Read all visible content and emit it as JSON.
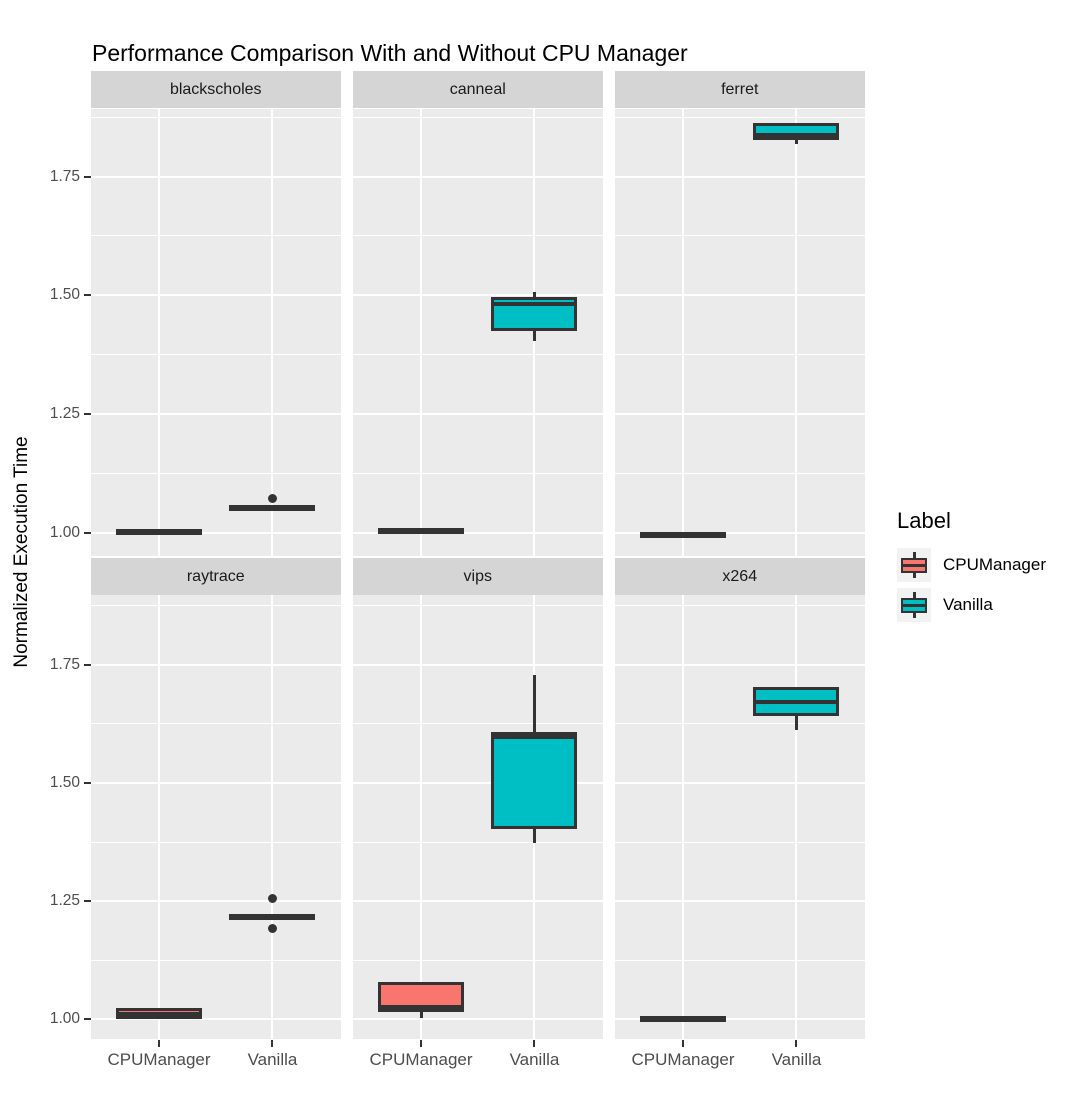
{
  "chart_data": {
    "type": "boxplot",
    "title": "Performance Comparison With and Without CPU Manager",
    "xlabel": "",
    "ylabel": "Normalized Execution Time",
    "x_categories": [
      "CPUManager",
      "Vanilla"
    ],
    "y_ticks": [
      1.0,
      1.25,
      1.5,
      1.75
    ],
    "y_tick_labels": [
      "1.00",
      "1.25",
      "1.50",
      "1.75"
    ],
    "y_minor_ticks": [
      1.125,
      1.375,
      1.625,
      1.875
    ],
    "ylim": [
      0.95,
      1.89
    ],
    "grid": {
      "major": "white",
      "minor": "white",
      "panel_bg": "#EBEBEB"
    },
    "legend": {
      "title": "Label",
      "position": "right",
      "entries": [
        {
          "label": "CPUManager",
          "color": "#F8766D"
        },
        {
          "label": "Vanilla",
          "color": "#00BFC4"
        }
      ]
    },
    "facets": [
      {
        "name": "blackscholes",
        "boxes": [
          {
            "group": "CPUManager",
            "whislo": 1.004,
            "q1": 1.004,
            "med": 1.006,
            "q3": 1.009,
            "whishi": 1.009,
            "outliers": []
          },
          {
            "group": "Vanilla",
            "whislo": 1.056,
            "q1": 1.056,
            "med": 1.058,
            "q3": 1.059,
            "whishi": 1.059,
            "outliers": [
              1.073
            ]
          }
        ]
      },
      {
        "name": "canneal",
        "boxes": [
          {
            "group": "CPUManager",
            "whislo": 1.0,
            "q1": 1.0,
            "med": 1.003,
            "q3": 1.01,
            "whishi": 1.01,
            "outliers": []
          },
          {
            "group": "Vanilla",
            "whislo": 1.405,
            "q1": 1.425,
            "med": 1.481,
            "q3": 1.496,
            "whishi": 1.508,
            "outliers": []
          }
        ]
      },
      {
        "name": "ferret",
        "boxes": [
          {
            "group": "CPUManager",
            "whislo": 1.0,
            "q1": 1.0,
            "med": 1.001,
            "q3": 1.002,
            "whishi": 1.002,
            "outliers": []
          },
          {
            "group": "Vanilla",
            "whislo": 1.818,
            "q1": 1.826,
            "med": 1.833,
            "q3": 1.862,
            "whishi": 1.862,
            "outliers": []
          }
        ]
      },
      {
        "name": "raytrace",
        "boxes": [
          {
            "group": "CPUManager",
            "whislo": 1.0,
            "q1": 1.0,
            "med": 1.004,
            "q3": 1.024,
            "whishi": 1.024,
            "outliers": []
          },
          {
            "group": "Vanilla",
            "whislo": 1.219,
            "q1": 1.219,
            "med": 1.221,
            "q3": 1.223,
            "whishi": 1.223,
            "outliers": [
              1.256,
              1.192
            ]
          }
        ]
      },
      {
        "name": "vips",
        "boxes": [
          {
            "group": "CPUManager",
            "whislo": 1.003,
            "q1": 1.015,
            "med": 1.017,
            "q3": 1.078,
            "whishi": 1.078,
            "outliers": []
          },
          {
            "group": "Vanilla",
            "whislo": 1.372,
            "q1": 1.402,
            "med": 1.598,
            "q3": 1.608,
            "whishi": 1.728,
            "outliers": []
          }
        ]
      },
      {
        "name": "x264",
        "boxes": [
          {
            "group": "CPUManager",
            "whislo": 1.001,
            "q1": 1.001,
            "med": 1.004,
            "q3": 1.007,
            "whishi": 1.007,
            "outliers": []
          },
          {
            "group": "Vanilla",
            "whislo": 1.612,
            "q1": 1.642,
            "med": 1.672,
            "q3": 1.703,
            "whishi": 1.703,
            "outliers": []
          }
        ]
      }
    ]
  }
}
